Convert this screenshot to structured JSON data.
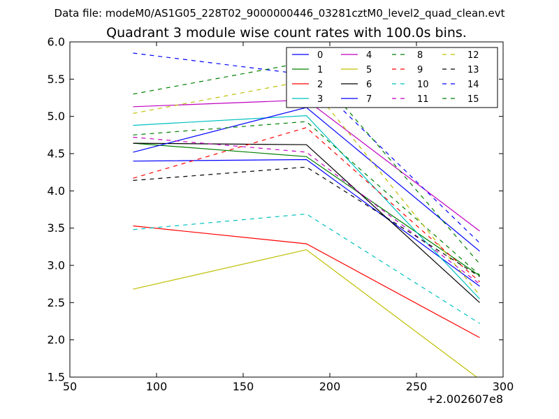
{
  "figure": {
    "suptitle": "Data file: modeM0/AS1G05_228T02_9000000446_03281cztM0_level2_quad_clean.evt"
  },
  "chart_data": {
    "type": "line",
    "title": "Quadrant 3 module wise count rates with 100.0s bins.",
    "xlabel": "",
    "ylabel": "",
    "x_offset_label": "+2.002607e8",
    "xlim": [
      50,
      300
    ],
    "ylim": [
      1.5,
      6.0
    ],
    "xticks": [
      50,
      100,
      150,
      200,
      250,
      300
    ],
    "yticks": [
      1.5,
      2.0,
      2.5,
      3.0,
      3.5,
      4.0,
      4.5,
      5.0,
      5.5,
      6.0
    ],
    "xtick_labels": [
      "50",
      "100",
      "150",
      "200",
      "250",
      "300"
    ],
    "ytick_labels": [
      "1.5",
      "2.0",
      "2.5",
      "3.0",
      "3.5",
      "4.0",
      "4.5",
      "5.0",
      "5.5",
      "6.0"
    ],
    "x": [
      86.5,
      186.5,
      286.5
    ],
    "grid": false,
    "legend_position": "top-right",
    "legend_columns": 4,
    "series": [
      {
        "name": "0",
        "color": "#0000ff",
        "style": "solid",
        "values": [
          4.4,
          4.42,
          2.72
        ]
      },
      {
        "name": "1",
        "color": "#008000",
        "style": "solid",
        "values": [
          4.64,
          4.46,
          2.86
        ]
      },
      {
        "name": "2",
        "color": "#ff0000",
        "style": "solid",
        "values": [
          3.53,
          3.29,
          2.03
        ]
      },
      {
        "name": "3",
        "color": "#00bfbf",
        "style": "solid",
        "values": [
          4.88,
          5.01,
          2.55
        ]
      },
      {
        "name": "4",
        "color": "#bf00bf",
        "style": "solid",
        "values": [
          5.13,
          5.22,
          3.46
        ]
      },
      {
        "name": "5",
        "color": "#bfbf00",
        "style": "solid",
        "values": [
          2.68,
          3.21,
          1.47
        ]
      },
      {
        "name": "6",
        "color": "#000000",
        "style": "solid",
        "values": [
          4.64,
          4.62,
          2.5
        ]
      },
      {
        "name": "7",
        "color": "#0000ff",
        "style": "solid",
        "values": [
          4.52,
          5.12,
          3.19
        ]
      },
      {
        "name": "8",
        "color": "#008000",
        "style": "dashed",
        "values": [
          4.75,
          4.93,
          2.87
        ]
      },
      {
        "name": "9",
        "color": "#ff0000",
        "style": "dashed",
        "values": [
          4.17,
          4.85,
          2.78
        ]
      },
      {
        "name": "10",
        "color": "#00bfbf",
        "style": "dashed",
        "values": [
          3.48,
          3.69,
          2.22
        ]
      },
      {
        "name": "11",
        "color": "#bf00bf",
        "style": "dashed",
        "values": [
          4.72,
          4.52,
          2.75
        ]
      },
      {
        "name": "12",
        "color": "#bfbf00",
        "style": "dashed",
        "values": [
          5.04,
          5.48,
          2.6
        ]
      },
      {
        "name": "13",
        "color": "#000000",
        "style": "dashed",
        "values": [
          4.14,
          4.32,
          2.85
        ]
      },
      {
        "name": "14",
        "color": "#0000ff",
        "style": "dashed",
        "values": [
          5.85,
          5.56,
          3.3
        ]
      },
      {
        "name": "15",
        "color": "#008000",
        "style": "dashed",
        "values": [
          5.3,
          5.73,
          3.02
        ]
      }
    ]
  }
}
